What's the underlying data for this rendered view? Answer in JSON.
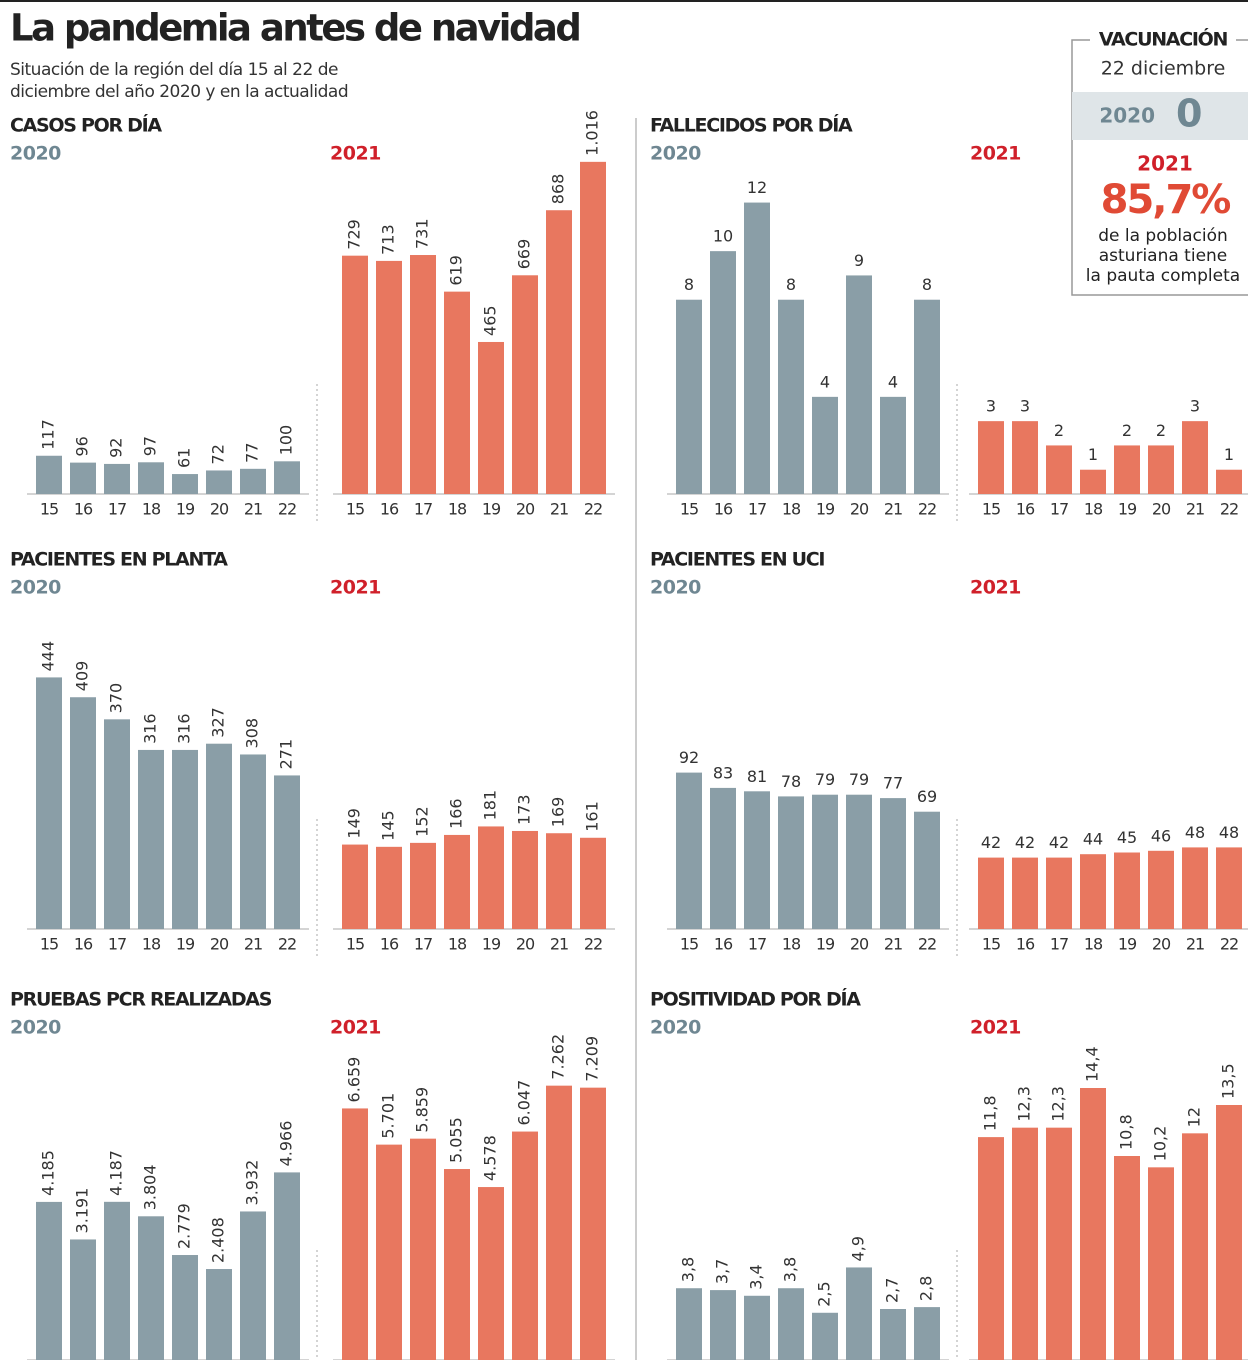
{
  "header": {
    "title": "La pandemia antes de navidad",
    "subtitle": [
      "Situación de la región del día 15 al 22 de",
      "diciembre del año 2020 y en la actualidad"
    ]
  },
  "vaccination": {
    "title": "VACUNACIÓN",
    "date": "22 diciembre",
    "year_2020": "2020",
    "value_2020": 0,
    "year_2021": "2021",
    "value_2021": 85.7,
    "value_2021_label": "85,7%",
    "note": [
      "de la población",
      "asturiana tiene",
      "la pauta completa"
    ]
  },
  "chart_data": [
    {
      "type": "bar",
      "title": "CASOS POR DÍA",
      "categories": [
        "15",
        "16",
        "17",
        "18",
        "19",
        "20",
        "21",
        "22"
      ],
      "ylim": [
        0,
        1040
      ],
      "label_orientation": "vertical",
      "series": [
        {
          "name": "2020",
          "color": "#8a9ea7",
          "values": [
            117,
            96,
            92,
            97,
            61,
            72,
            77,
            100
          ]
        },
        {
          "name": "2021",
          "color": "#e8775f",
          "values": [
            729,
            713,
            731,
            619,
            465,
            669,
            868,
            1016
          ],
          "value_labels": [
            "729",
            "713",
            "731",
            "619",
            "465",
            "669",
            "868",
            "1.016"
          ]
        }
      ]
    },
    {
      "type": "bar",
      "title": "FALLECIDOS POR DÍA",
      "categories": [
        "15",
        "16",
        "17",
        "18",
        "19",
        "20",
        "21",
        "22"
      ],
      "ylim": [
        0,
        14
      ],
      "label_orientation": "horizontal",
      "series": [
        {
          "name": "2020",
          "color": "#8a9ea7",
          "values": [
            8,
            10,
            12,
            8,
            4,
            9,
            4,
            8
          ]
        },
        {
          "name": "2021",
          "color": "#e8775f",
          "values": [
            3,
            3,
            2,
            1,
            2,
            2,
            3,
            1
          ]
        }
      ]
    },
    {
      "type": "bar",
      "title": "PACIENTES EN PLANTA",
      "categories": [
        "15",
        "16",
        "17",
        "18",
        "19",
        "20",
        "21",
        "22"
      ],
      "ylim": [
        0,
        600
      ],
      "label_orientation": "vertical",
      "series": [
        {
          "name": "2020",
          "color": "#8a9ea7",
          "values": [
            444,
            409,
            370,
            316,
            316,
            327,
            308,
            271
          ]
        },
        {
          "name": "2021",
          "color": "#e8775f",
          "values": [
            149,
            145,
            152,
            166,
            181,
            173,
            169,
            161
          ]
        }
      ]
    },
    {
      "type": "bar",
      "title": "PACIENTES EN UCI",
      "categories": [
        "15",
        "16",
        "17",
        "18",
        "19",
        "20",
        "21",
        "22"
      ],
      "ylim": [
        0,
        200
      ],
      "label_orientation": "horizontal",
      "series": [
        {
          "name": "2020",
          "color": "#8a9ea7",
          "values": [
            92,
            83,
            81,
            78,
            79,
            79,
            77,
            69
          ]
        },
        {
          "name": "2021",
          "color": "#e8775f",
          "values": [
            42,
            42,
            42,
            44,
            45,
            46,
            48,
            48
          ]
        }
      ]
    },
    {
      "type": "bar",
      "title": "PRUEBAS PCR REALIZADAS",
      "ylim": [
        0,
        9000
      ],
      "label_orientation": "vertical",
      "series": [
        {
          "name": "2020",
          "color": "#8a9ea7",
          "values": [
            4185,
            3191,
            4187,
            3804,
            2779,
            2408,
            3932,
            4966
          ],
          "value_labels": [
            "4.185",
            "3.191",
            "4.187",
            "3.804",
            "2.779",
            "2.408",
            "3.932",
            "4.966"
          ]
        },
        {
          "name": "2021",
          "color": "#e8775f",
          "values": [
            6659,
            5701,
            5859,
            5055,
            4578,
            6047,
            7262,
            7209
          ],
          "value_labels": [
            "6.659",
            "5.701",
            "5.859",
            "5.055",
            "4.578",
            "6.047",
            "7.262",
            "7.209"
          ]
        }
      ]
    },
    {
      "type": "bar",
      "title": "POSITIVIDAD POR DÍA",
      "ylim": [
        0,
        18
      ],
      "label_orientation": "vertical",
      "series": [
        {
          "name": "2020",
          "color": "#8a9ea7",
          "values": [
            3.8,
            3.7,
            3.4,
            3.8,
            2.5,
            4.9,
            2.7,
            2.8
          ],
          "value_labels": [
            "3,8",
            "3,7",
            "3,4",
            "3,8",
            "2,5",
            "4,9",
            "2,7",
            "2,8"
          ]
        },
        {
          "name": "2021",
          "color": "#e8775f",
          "values": [
            11.8,
            12.3,
            12.3,
            14.4,
            10.8,
            10.2,
            12,
            13.5
          ],
          "value_labels": [
            "11,8",
            "12,3",
            "12,3",
            "14,4",
            "10,8",
            "10,2",
            "12",
            "13,5"
          ]
        }
      ]
    }
  ]
}
